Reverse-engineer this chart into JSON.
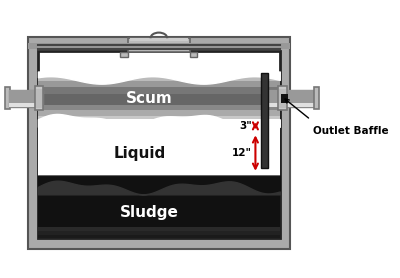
{
  "fig_w": 4.0,
  "fig_h": 2.78,
  "dpi": 100,
  "bg_color": "#ffffff",
  "outer_wall_color": "#aaaaaa",
  "outer_wall_dark": "#555555",
  "inner_wall_color": "#ffffff",
  "lid_color": "#bbbbbb",
  "lid_dark": "#888888",
  "scum_light": "#cccccc",
  "scum_mid": "#999999",
  "scum_dark": "#666666",
  "liquid_color": "#ffffff",
  "sludge_color": "#111111",
  "sludge_mid": "#333333",
  "pipe_light": "#dddddd",
  "pipe_mid": "#aaaaaa",
  "pipe_dark": "#777777",
  "baffle_color": "#111111",
  "red_color": "#cc0000",
  "black": "#000000",
  "label_scum": "Scum",
  "label_liquid": "Liquid",
  "label_sludge": "Sludge",
  "label_3in": "3\"",
  "label_12in": "12\"",
  "label_outlet": "Outlet Baffle"
}
